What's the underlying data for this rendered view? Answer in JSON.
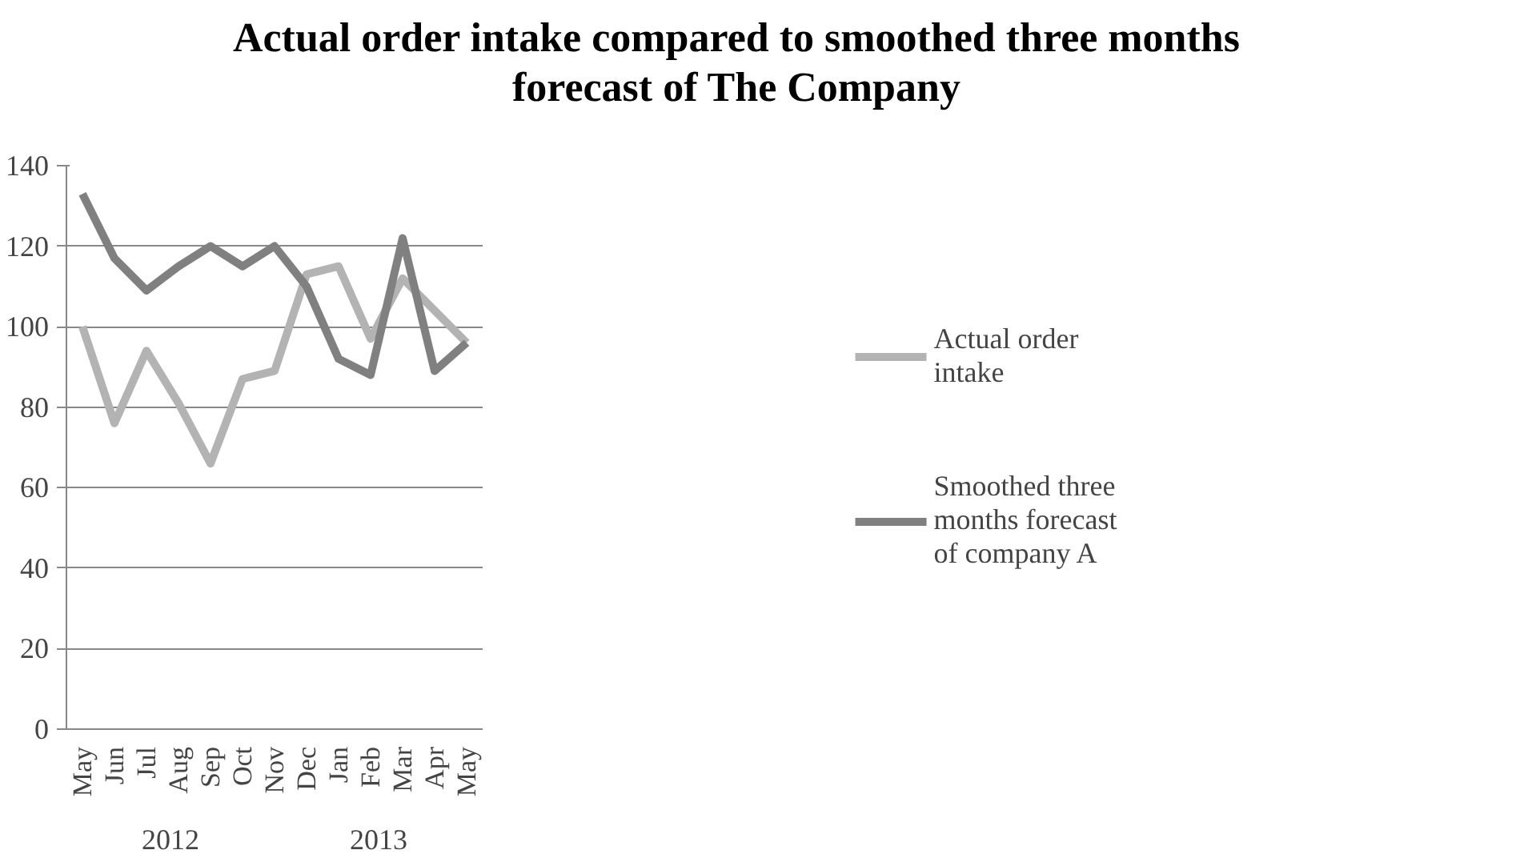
{
  "chart_data": {
    "type": "line",
    "title": "Actual order intake compared to smoothed three months forecast of The Company",
    "categories": [
      "May",
      "Jun",
      "Jul",
      "Aug",
      "Sep",
      "Oct",
      "Nov",
      "Dec",
      "Jan",
      "Feb",
      "Mar",
      "Apr",
      "May"
    ],
    "series": [
      {
        "name": "Actual order intake",
        "color": "#b3b3b3",
        "values": [
          100,
          76,
          94,
          81,
          66,
          87,
          89,
          113,
          115,
          97,
          112,
          104,
          96
        ]
      },
      {
        "name": "Smoothed three months forecast of company A",
        "color": "#808080",
        "values": [
          133,
          117,
          109,
          115,
          120,
          115,
          120,
          110,
          92,
          88,
          122,
          89,
          96
        ]
      }
    ],
    "annotations": [
      "2012",
      "2013"
    ],
    "ylim": [
      0,
      140
    ],
    "yticks": [
      0,
      20,
      40,
      60,
      80,
      100,
      120,
      140
    ],
    "grid": "y",
    "legend": "right",
    "marker": "none",
    "line_style": "solid"
  }
}
